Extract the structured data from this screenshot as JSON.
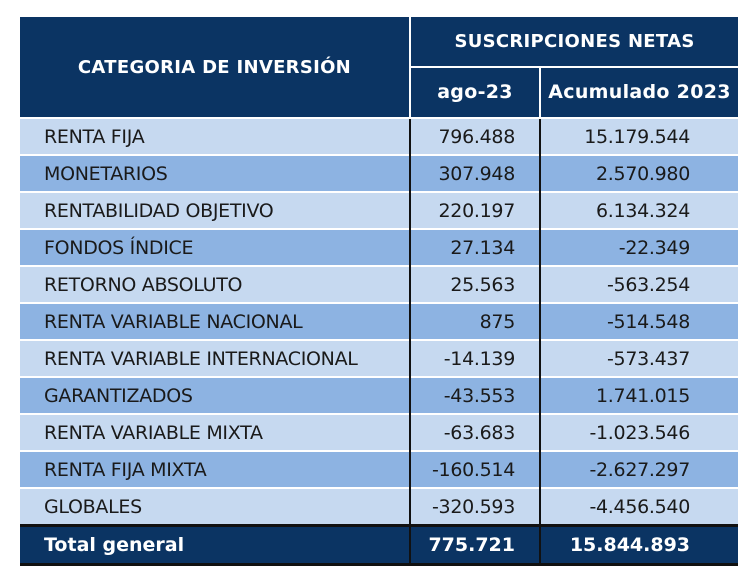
{
  "header": {
    "category": "CATEGORIA DE INVERSIÓN",
    "group": "SUSCRIPCIONES NETAS",
    "col_month": "ago-23",
    "col_ytd": "Acumulado 2023"
  },
  "rows": [
    {
      "name": "RENTA FIJA",
      "month": "796.488",
      "ytd": "15.179.544"
    },
    {
      "name": "MONETARIOS",
      "month": "307.948",
      "ytd": "2.570.980"
    },
    {
      "name": "RENTABILIDAD OBJETIVO",
      "month": "220.197",
      "ytd": "6.134.324"
    },
    {
      "name": "FONDOS ÍNDICE",
      "month": "27.134",
      "ytd": "-22.349"
    },
    {
      "name": "RETORNO ABSOLUTO",
      "month": "25.563",
      "ytd": "-563.254"
    },
    {
      "name": "RENTA VARIABLE NACIONAL",
      "month": "875",
      "ytd": "-514.548"
    },
    {
      "name": "RENTA VARIABLE INTERNACIONAL",
      "month": "-14.139",
      "ytd": "-573.437"
    },
    {
      "name": "GARANTIZADOS",
      "month": "-43.553",
      "ytd": "1.741.015"
    },
    {
      "name": "RENTA VARIABLE MIXTA",
      "month": "-63.683",
      "ytd": "-1.023.546"
    },
    {
      "name": "RENTA FIJA MIXTA",
      "month": "-160.514",
      "ytd": "-2.627.297"
    },
    {
      "name": "GLOBALES",
      "month": "-320.593",
      "ytd": "-4.456.540"
    }
  ],
  "total": {
    "name": "Total general",
    "month": "775.721",
    "ytd": "15.844.893"
  }
}
